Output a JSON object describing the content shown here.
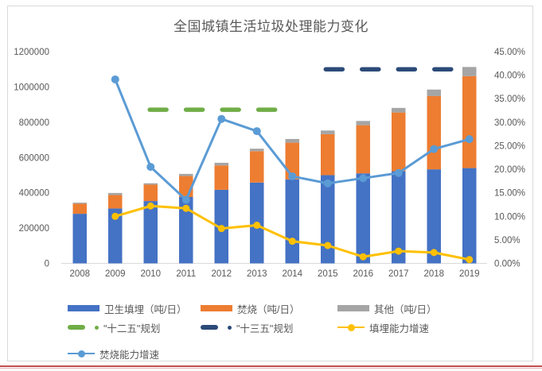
{
  "page": {
    "frame_border_color": "#d9d9d9",
    "bottom_rule": {
      "color_top": "#c0504d",
      "color_bottom": "#e5b1af"
    }
  },
  "chart_data": {
    "type": "combo",
    "subtype": "stacked-bar + lines + dashed plan targets",
    "title": "全国城镇生活垃圾处理能力变化",
    "categories": [
      "2008",
      "2009",
      "2010",
      "2011",
      "2012",
      "2013",
      "2014",
      "2015",
      "2016",
      "2017",
      "2018",
      "2019"
    ],
    "left_axis": {
      "min": 0,
      "max": 1200000,
      "tick_step": 200000,
      "tick_labels": [
        "0",
        "200000",
        "400000",
        "600000",
        "800000",
        "1000000",
        "1200000"
      ]
    },
    "right_axis": {
      "min": 0,
      "max": 45,
      "tick_step": 5,
      "tick_labels": [
        "0.00%",
        "5.00%",
        "10.00%",
        "15.00%",
        "20.00%",
        "25.00%",
        "30.00%",
        "35.00%",
        "40.00%",
        "45.00%"
      ]
    },
    "bar_series": [
      {
        "key": "landfill",
        "name": "卫生填埋（吨/日）",
        "color": "#4472C4",
        "values": [
          281000,
          311000,
          353000,
          376000,
          417000,
          458000,
          476000,
          500000,
          510000,
          522000,
          533000,
          540000
        ]
      },
      {
        "key": "incineration",
        "name": "焚烧（吨/日）",
        "color": "#ED7D31",
        "values": [
          57000,
          76000,
          93000,
          119000,
          138000,
          178000,
          208000,
          232000,
          273000,
          333000,
          415000,
          521000
        ]
      },
      {
        "key": "other",
        "name": "其他（吨/日）",
        "color": "#A5A5A5",
        "values": [
          6000,
          12000,
          8000,
          12000,
          15000,
          14000,
          21000,
          21000,
          24000,
          26000,
          37000,
          52000
        ]
      }
    ],
    "plan_lines": [
      {
        "key": "fyp12",
        "name": "\"十二五\"规划",
        "color": "#70AD47",
        "axis": "left",
        "value": 871000,
        "from_year": 2009.93,
        "to_year": 2013.52
      },
      {
        "key": "fyp13",
        "name": "\"十三五\"规划",
        "color": "#2B4A78",
        "axis": "left",
        "value": 1100000,
        "from_year": 2014.9,
        "to_year": 2019.05
      }
    ],
    "line_series": [
      {
        "key": "landfill-growth",
        "name": "填埋能力增速",
        "color": "#FFC000",
        "axis": "right",
        "values": [
          null,
          10.0,
          12.2,
          11.7,
          7.4,
          8.1,
          4.7,
          3.8,
          1.4,
          2.6,
          2.3,
          0.8
        ]
      },
      {
        "key": "incineration-growth",
        "name": "焚烧能力增速",
        "color": "#5B9BD5",
        "axis": "right",
        "values": [
          null,
          39.1,
          20.5,
          13.5,
          30.7,
          28.1,
          18.5,
          17.0,
          18.1,
          19.2,
          24.3,
          26.4
        ]
      }
    ],
    "legend": {
      "rows": [
        [
          {
            "key": "landfill",
            "label": "卫生填埋（吨/日）",
            "marker": "swatch",
            "color": "#4472C4"
          },
          {
            "key": "incineration",
            "label": "焚烧（吨/日）",
            "marker": "swatch",
            "color": "#ED7D31"
          },
          {
            "key": "other",
            "label": "其他（吨/日）",
            "marker": "swatch",
            "color": "#A5A5A5"
          }
        ],
        [
          {
            "key": "fyp12",
            "label": "\"十二五\"规划",
            "marker": "dash-dot",
            "color": "#70AD47"
          },
          {
            "key": "fyp13",
            "label": "\"十三五\"规划",
            "marker": "dash-dot",
            "color": "#2B4A78"
          },
          {
            "key": "landfill-growth",
            "label": "填埋能力增速",
            "marker": "line-marker",
            "color": "#FFC000"
          }
        ],
        [
          {
            "key": "incineration-growth",
            "label": "焚烧能力增速",
            "marker": "line-marker",
            "color": "#5B9BD5"
          }
        ]
      ]
    }
  }
}
